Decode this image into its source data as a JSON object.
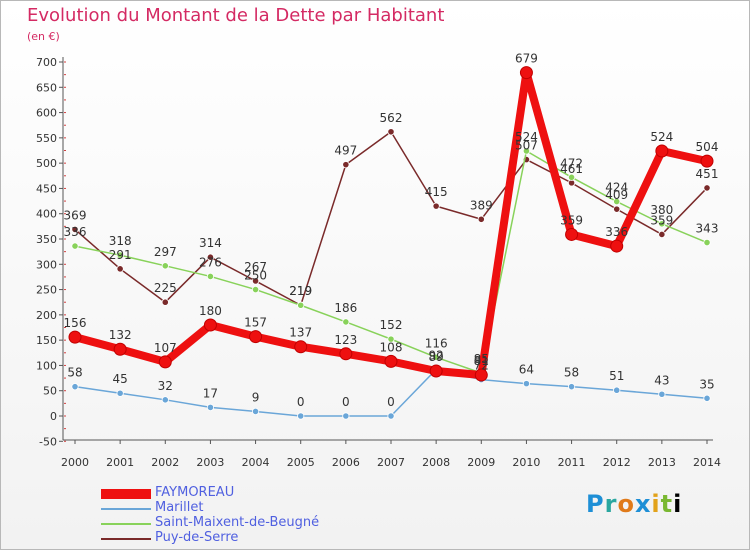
{
  "chart_data": {
    "type": "line",
    "title": "Evolution du Montant de la Dette par Habitant",
    "unit_label": "(en €)",
    "x": [
      "2000",
      "2001",
      "2002",
      "2003",
      "2004",
      "2005",
      "2006",
      "2007",
      "2008",
      "2009",
      "2010",
      "2011",
      "2012",
      "2013",
      "2014"
    ],
    "ylim": [
      -50,
      700
    ],
    "yticks": [
      -50,
      0,
      50,
      100,
      150,
      200,
      250,
      300,
      350,
      400,
      450,
      500,
      550,
      600,
      650,
      700
    ],
    "grid": false,
    "legend_position": "bottom-left",
    "series": [
      {
        "name": "FAYMOREAU",
        "color": "#ee1010",
        "values": [
          156,
          132,
          107,
          180,
          157,
          137,
          123,
          108,
          89,
          81,
          679,
          359,
          336,
          524,
          504
        ]
      },
      {
        "name": "Marillet",
        "color": "#6aa6d8",
        "values": [
          58,
          45,
          32,
          17,
          9,
          0,
          0,
          0,
          92,
          72,
          64,
          58,
          51,
          43,
          35
        ]
      },
      {
        "name": "Saint-Maixent-de-Beugné",
        "color": "#88d25a",
        "values": [
          336,
          318,
          297,
          276,
          250,
          219,
          186,
          152,
          116,
          85,
          524,
          472,
          424,
          380,
          343
        ]
      },
      {
        "name": "Puy-de-Serre",
        "color": "#7a2a2a",
        "values": [
          369,
          291,
          225,
          314,
          267,
          219,
          497,
          562,
          415,
          389,
          507,
          461,
          409,
          359,
          451
        ]
      }
    ]
  },
  "logo": {
    "letters": [
      "P",
      "r",
      "o",
      "x",
      "i",
      "t",
      "i"
    ]
  }
}
